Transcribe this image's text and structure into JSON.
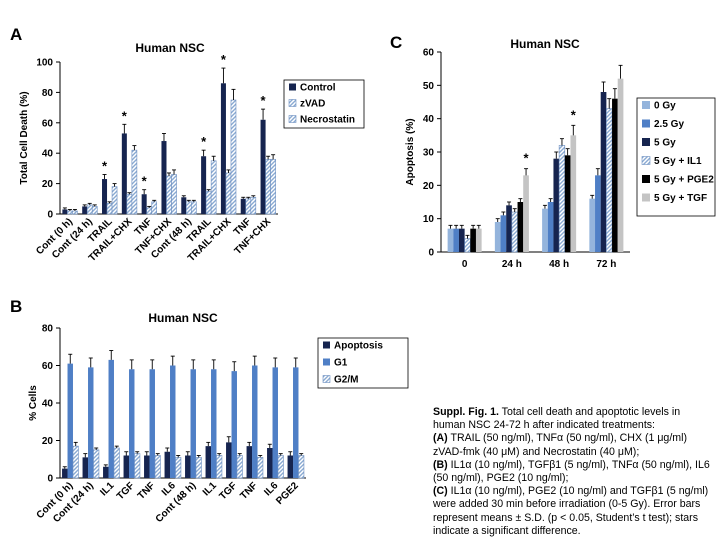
{
  "colors": {
    "navy": "#16244f",
    "blue": "#4f7fc6",
    "lightblue": "#94b4dc",
    "hatch": "#8aaad2",
    "black": "#000000",
    "gray": "#c4c4c4"
  },
  "panels": {
    "A": "A",
    "B": "B",
    "C": "C"
  },
  "chart_data": [
    {
      "id": "A",
      "type": "bar",
      "title": "Human NSC",
      "xlabel": "",
      "ylabel": "Total Cell Death  (%)",
      "ylim": [
        0,
        100
      ],
      "yticks": [
        "0",
        "20",
        "40",
        "60",
        "80",
        "100"
      ],
      "categories": [
        "Cont (0 h)",
        "Cont (24 h)",
        "TRAIL",
        "TRAIL+CHX",
        "TNF",
        "TNF+CHX",
        "Cont (48 h)",
        "TRAIL",
        "TRAIL+CHX",
        "TNF",
        "TNF+CHX"
      ],
      "series": [
        {
          "name": "Control",
          "values": [
            3,
            5,
            23,
            53,
            13,
            48,
            11,
            38,
            86,
            10,
            62
          ],
          "errors": [
            1,
            1,
            3,
            6,
            3,
            5,
            1,
            4,
            10,
            1,
            7
          ]
        },
        {
          "name": "zVAD",
          "values": [
            2,
            6,
            7,
            13,
            4,
            25,
            8,
            15,
            27,
            10,
            36
          ],
          "errors": [
            1,
            1,
            1,
            1,
            1,
            2,
            1,
            1,
            2,
            1,
            2
          ]
        },
        {
          "name": "Necrostatin",
          "values": [
            2,
            5,
            18,
            42,
            8,
            26,
            8,
            35,
            75,
            11,
            36
          ],
          "errors": [
            1,
            1,
            2,
            3,
            1,
            3,
            1,
            3,
            7,
            1,
            3
          ]
        }
      ],
      "stars": [
        "",
        "",
        "*",
        "*",
        "*",
        "",
        "",
        "*",
        "*",
        "",
        "*"
      ]
    },
    {
      "id": "B",
      "type": "bar",
      "title": "Human NSC",
      "xlabel": "",
      "ylabel": "% Cells",
      "ylim": [
        0,
        80
      ],
      "yticks": [
        "0",
        "20",
        "40",
        "60",
        "80"
      ],
      "categories": [
        "Cont (0 h)",
        "Cont (24 h)",
        "IL1",
        "TGF",
        "TNF",
        "IL6",
        "Cont (48 h)",
        "IL1",
        "TGF",
        "TNF",
        "IL6",
        "PGE2"
      ],
      "series": [
        {
          "name": "Apoptosis",
          "values": [
            5,
            11,
            6,
            12,
            12,
            14,
            12,
            17,
            19,
            17,
            16,
            12
          ],
          "errors": [
            1,
            2,
            1,
            2,
            2,
            2,
            2,
            2,
            3,
            2,
            2,
            2
          ]
        },
        {
          "name": "G1",
          "values": [
            61,
            59,
            63,
            58,
            58,
            60,
            58,
            58,
            57,
            60,
            59,
            59
          ],
          "errors": [
            5,
            5,
            5,
            5,
            5,
            5,
            5,
            5,
            5,
            5,
            5,
            5
          ]
        },
        {
          "name": "G2/M",
          "values": [
            17,
            15,
            16,
            13,
            12,
            11,
            11,
            12,
            12,
            11,
            12,
            12
          ],
          "errors": [
            2,
            1,
            1,
            1,
            1,
            1,
            1,
            1,
            1,
            1,
            1,
            1
          ]
        }
      ]
    },
    {
      "id": "C",
      "type": "bar",
      "title": "Human NSC",
      "xlabel": "",
      "ylabel": "Apoptosis (%)",
      "ylim": [
        0,
        60
      ],
      "yticks": [
        "0",
        "10",
        "20",
        "30",
        "40",
        "50",
        "60"
      ],
      "categories": [
        "0",
        "24 h",
        "48 h",
        "72 h"
      ],
      "series": [
        {
          "name": "0 Gy",
          "values": [
            7,
            9,
            13,
            16
          ],
          "errors": [
            1,
            1,
            1,
            1
          ]
        },
        {
          "name": "2.5 Gy",
          "values": [
            7,
            11,
            15,
            23
          ],
          "errors": [
            1,
            1,
            1,
            2
          ]
        },
        {
          "name": "5 Gy",
          "values": [
            7,
            14,
            28,
            48
          ],
          "errors": [
            1,
            1,
            2,
            3
          ]
        },
        {
          "name": "5 Gy + IL1",
          "values": [
            4,
            12,
            32,
            43
          ],
          "errors": [
            1,
            1,
            2,
            3
          ]
        },
        {
          "name": "5 Gy + PGE2",
          "values": [
            7,
            15,
            29,
            46
          ],
          "errors": [
            1,
            1,
            2,
            3
          ]
        },
        {
          "name": "5 Gy + TGF",
          "values": [
            7,
            23,
            35,
            52
          ],
          "errors": [
            1,
            2,
            3,
            4
          ]
        }
      ],
      "stars": [
        "",
        "*",
        "*",
        ""
      ]
    }
  ],
  "caption": {
    "heading": "Suppl. Fig. 1.",
    "intro": " Total cell death and apoptotic levels in human NSC 24-72 h after indicated treatments:",
    "a_label": "(A)",
    "a_text": " TRAIL (50 ng/ml), TNFα (50 ng/ml), CHX (1 μg/ml) zVAD-fmk (40 μM) and Necrostatin (40 μM);",
    "b_label": "(B)",
    "b_text": " IL1α (10 ng/ml), TGFβ1 (5 ng/ml), TNFα (50 ng/ml), IL6 (50 ng/ml), PGE2 (10 ng/ml);",
    "c_label": "(C)",
    "c_text": " IL1α (10 ng/ml), PGE2 (10 ng/ml) and TGFβ1 (5 ng/ml) were added 30 min before irradiation (0-5 Gy). Error bars represent means ± S.D. (p < 0.05, Student’s t test); stars indicate a significant difference."
  }
}
